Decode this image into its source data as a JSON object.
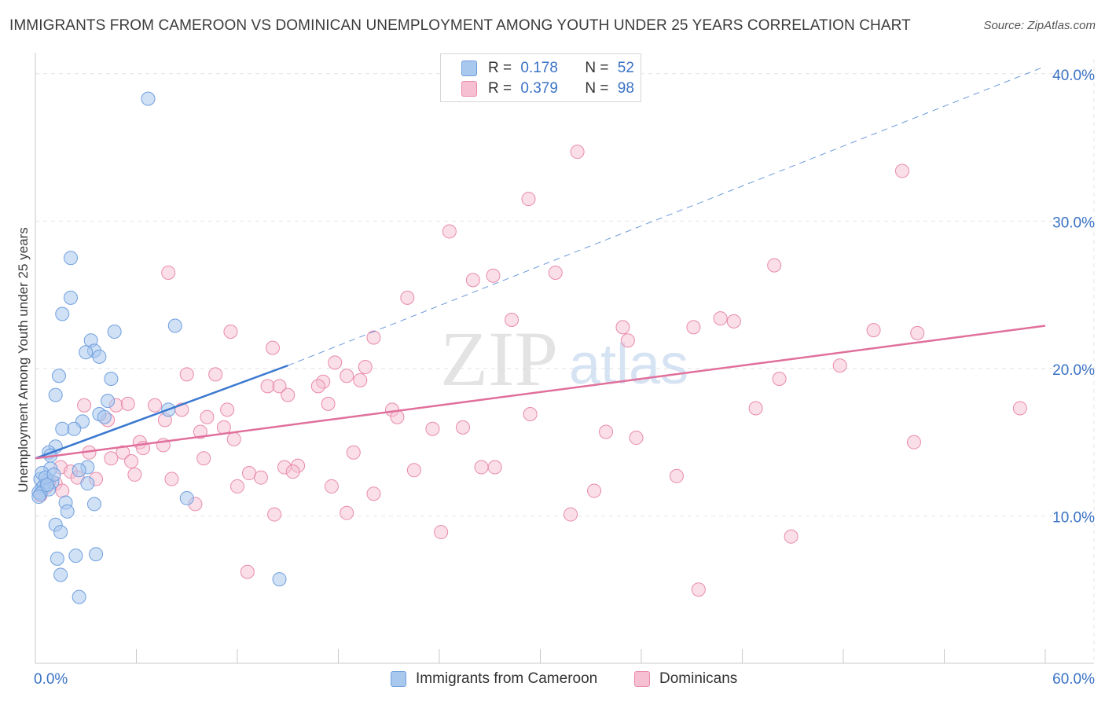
{
  "title": "IMMIGRANTS FROM CAMEROON VS DOMINICAN UNEMPLOYMENT AMONG YOUTH UNDER 25 YEARS CORRELATION CHART",
  "source": "Source: ZipAtlas.com",
  "watermark": {
    "zip": "ZIP",
    "atlas": "atlas"
  },
  "colors": {
    "blue_fill": "#a9c8ee",
    "blue_stroke": "#6f9fde",
    "blue_line": "#3a78d0",
    "pink_fill": "#f6bfd2",
    "pink_stroke": "#e98aa9",
    "pink_line": "#e0709b",
    "axis_text": "#3a72c4",
    "grid": "#e4e4e4"
  },
  "legend": {
    "rows": [
      {
        "r_label": "R =",
        "r_value": "0.178",
        "n_label": "N =",
        "n_value": "52"
      },
      {
        "r_label": "R =",
        "r_value": "0.379",
        "n_label": "N =",
        "n_value": "98"
      }
    ],
    "series_names": [
      "Immigrants from Cameroon",
      "Dominicans"
    ]
  },
  "chart_data": {
    "type": "scatter",
    "title": "IMMIGRANTS FROM CAMEROON VS DOMINICAN UNEMPLOYMENT AMONG YOUTH UNDER 25 YEARS CORRELATION CHART",
    "xlabel": "",
    "ylabel": "Unemployment Among Youth under 25 years",
    "xlim": [
      0,
      60
    ],
    "ylim": [
      0,
      41
    ],
    "x_tick_labels": [
      "0.0%",
      "60.0%"
    ],
    "y_ticks": [
      10,
      20,
      30,
      40
    ],
    "y_tick_labels": [
      "10.0%",
      "20.0%",
      "30.0%",
      "40.0%"
    ],
    "grid": true,
    "legend_position": "top-center",
    "series": [
      {
        "name": "Immigrants from Cameroon",
        "R": 0.178,
        "N": 52,
        "trend": {
          "x": [
            0,
            15.0
          ],
          "y": [
            13.9,
            20.2
          ],
          "dashed_to": [
            60,
            40.5
          ]
        },
        "points": [
          [
            6.7,
            38.3
          ],
          [
            2.1,
            27.5
          ],
          [
            2.1,
            24.8
          ],
          [
            1.6,
            23.7
          ],
          [
            8.3,
            22.9
          ],
          [
            4.7,
            22.5
          ],
          [
            3.3,
            21.9
          ],
          [
            3.5,
            21.2
          ],
          [
            3.0,
            21.1
          ],
          [
            3.8,
            20.8
          ],
          [
            1.4,
            19.5
          ],
          [
            4.5,
            19.3
          ],
          [
            1.2,
            18.2
          ],
          [
            4.3,
            17.8
          ],
          [
            7.9,
            17.2
          ],
          [
            3.8,
            16.9
          ],
          [
            2.8,
            16.4
          ],
          [
            2.3,
            15.9
          ],
          [
            1.6,
            15.9
          ],
          [
            1.2,
            14.7
          ],
          [
            0.8,
            14.3
          ],
          [
            0.9,
            14.1
          ],
          [
            3.1,
            13.3
          ],
          [
            0.9,
            13.2
          ],
          [
            0.3,
            12.5
          ],
          [
            0.7,
            12.4
          ],
          [
            1.0,
            12.3
          ],
          [
            3.1,
            12.2
          ],
          [
            0.5,
            12.0
          ],
          [
            0.4,
            11.9
          ],
          [
            0.8,
            11.8
          ],
          [
            0.2,
            11.6
          ],
          [
            0.3,
            11.5
          ],
          [
            9.0,
            11.2
          ],
          [
            1.8,
            10.9
          ],
          [
            3.5,
            10.8
          ],
          [
            1.9,
            10.3
          ],
          [
            0.2,
            11.3
          ],
          [
            1.2,
            9.4
          ],
          [
            1.5,
            8.9
          ],
          [
            3.6,
            7.4
          ],
          [
            2.4,
            7.3
          ],
          [
            1.3,
            7.1
          ],
          [
            1.5,
            6.0
          ],
          [
            14.5,
            5.7
          ],
          [
            2.6,
            4.5
          ],
          [
            0.4,
            12.9
          ],
          [
            0.6,
            12.6
          ],
          [
            2.6,
            13.1
          ],
          [
            1.1,
            12.8
          ],
          [
            4.1,
            16.7
          ],
          [
            0.7,
            12.1
          ]
        ]
      },
      {
        "name": "Dominicans",
        "R": 0.379,
        "N": 98,
        "trend": {
          "x": [
            0,
            60
          ],
          "y": [
            13.9,
            22.9
          ]
        },
        "points": [
          [
            32.2,
            34.7
          ],
          [
            51.5,
            33.4
          ],
          [
            29.3,
            31.5
          ],
          [
            24.6,
            29.3
          ],
          [
            43.9,
            27.0
          ],
          [
            30.9,
            26.5
          ],
          [
            7.9,
            26.5
          ],
          [
            27.2,
            26.3
          ],
          [
            26.0,
            26.0
          ],
          [
            22.1,
            24.8
          ],
          [
            28.3,
            23.3
          ],
          [
            40.7,
            23.4
          ],
          [
            41.5,
            23.2
          ],
          [
            34.9,
            22.8
          ],
          [
            39.1,
            22.8
          ],
          [
            11.6,
            22.5
          ],
          [
            49.8,
            22.6
          ],
          [
            52.4,
            22.4
          ],
          [
            20.1,
            22.1
          ],
          [
            35.2,
            21.9
          ],
          [
            14.1,
            21.4
          ],
          [
            17.8,
            20.4
          ],
          [
            19.6,
            20.1
          ],
          [
            47.8,
            20.2
          ],
          [
            9.0,
            19.6
          ],
          [
            10.7,
            19.6
          ],
          [
            18.5,
            19.5
          ],
          [
            19.3,
            19.2
          ],
          [
            44.2,
            19.3
          ],
          [
            17.1,
            19.1
          ],
          [
            16.8,
            18.8
          ],
          [
            13.8,
            18.8
          ],
          [
            14.5,
            18.8
          ],
          [
            15.0,
            18.2
          ],
          [
            17.4,
            17.6
          ],
          [
            7.1,
            17.5
          ],
          [
            2.9,
            17.5
          ],
          [
            4.8,
            17.5
          ],
          [
            8.7,
            17.2
          ],
          [
            11.4,
            17.2
          ],
          [
            42.8,
            17.3
          ],
          [
            58.5,
            17.3
          ],
          [
            21.2,
            17.2
          ],
          [
            29.4,
            16.9
          ],
          [
            10.2,
            16.7
          ],
          [
            7.7,
            16.5
          ],
          [
            21.5,
            16.7
          ],
          [
            4.3,
            16.5
          ],
          [
            11.2,
            16.0
          ],
          [
            23.6,
            15.9
          ],
          [
            25.4,
            16.0
          ],
          [
            9.8,
            15.7
          ],
          [
            33.9,
            15.7
          ],
          [
            35.7,
            15.3
          ],
          [
            52.2,
            15.0
          ],
          [
            11.8,
            15.2
          ],
          [
            6.2,
            15.0
          ],
          [
            7.6,
            14.8
          ],
          [
            6.4,
            14.6
          ],
          [
            3.2,
            14.3
          ],
          [
            5.2,
            14.3
          ],
          [
            18.9,
            14.3
          ],
          [
            4.5,
            13.9
          ],
          [
            10.0,
            13.9
          ],
          [
            5.7,
            13.7
          ],
          [
            14.8,
            13.3
          ],
          [
            15.6,
            13.4
          ],
          [
            1.5,
            13.3
          ],
          [
            2.1,
            13.0
          ],
          [
            26.5,
            13.3
          ],
          [
            27.3,
            13.3
          ],
          [
            15.3,
            13.0
          ],
          [
            22.5,
            13.1
          ],
          [
            2.5,
            12.6
          ],
          [
            5.9,
            12.8
          ],
          [
            12.7,
            12.9
          ],
          [
            8.1,
            12.5
          ],
          [
            3.6,
            12.5
          ],
          [
            13.4,
            12.6
          ],
          [
            38.1,
            12.7
          ],
          [
            1.2,
            12.2
          ],
          [
            0.8,
            12.3
          ],
          [
            0.6,
            11.9
          ],
          [
            12.0,
            12.0
          ],
          [
            17.6,
            12.0
          ],
          [
            1.6,
            11.7
          ],
          [
            33.2,
            11.7
          ],
          [
            20.1,
            11.5
          ],
          [
            9.5,
            10.8
          ],
          [
            14.2,
            10.1
          ],
          [
            18.5,
            10.2
          ],
          [
            31.8,
            10.1
          ],
          [
            24.1,
            8.9
          ],
          [
            44.9,
            8.6
          ],
          [
            12.6,
            6.2
          ],
          [
            39.4,
            5.0
          ],
          [
            0.3,
            11.4
          ],
          [
            5.5,
            17.6
          ]
        ]
      }
    ]
  }
}
